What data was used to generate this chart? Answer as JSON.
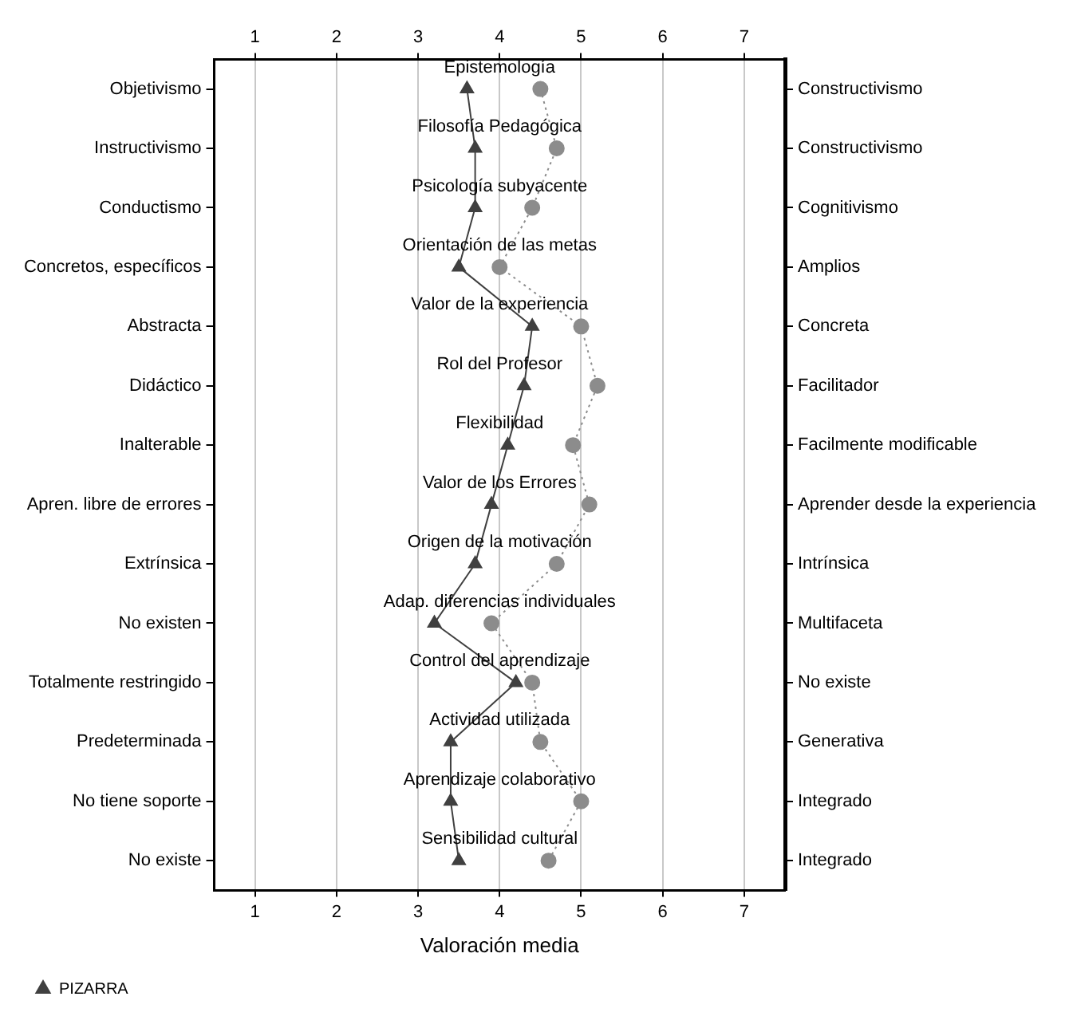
{
  "chart_data": {
    "type": "line",
    "orientation": "horizontal",
    "categories": [
      "Objetivismo",
      "Instructivismo",
      "Conductismo",
      "Concretos, específicos",
      "Abstracta",
      "Didáctico",
      "Inalterable",
      "Apren. libre de errores",
      "Extrínsica",
      "No existen",
      "Totalmente restringido",
      "Predeterminada",
      "No tiene soporte",
      "No existe"
    ],
    "y2_categories": [
      "Constructivismo",
      "Constructivismo",
      "Cognitivismo",
      "Amplios",
      "Concreta",
      "Facilitador",
      "Facilmente modificable",
      "Aprender desde la experiencia",
      "Intrínsica",
      "Multifaceta",
      "No existe",
      "Generativa",
      "Integrado",
      "Integrado"
    ],
    "series": [
      {
        "name": "PIZARRA",
        "color": "#404040",
        "marker": "triangle",
        "line_style": "solid",
        "values": [
          3.6,
          3.7,
          3.7,
          3.5,
          4.4,
          4.3,
          4.1,
          3.9,
          3.7,
          3.2,
          4.2,
          3.4,
          3.4,
          3.5
        ]
      },
      {
        "color": "#8c8c8c",
        "marker": "circle",
        "line_style": "dotted",
        "values": [
          4.5,
          4.7,
          4.4,
          4.0,
          5.0,
          5.2,
          4.9,
          5.1,
          4.7,
          3.9,
          4.4,
          4.5,
          5.0,
          4.6
        ]
      }
    ],
    "annotations": [
      "Epistemología",
      "Filosofía Pedagógica",
      "Psicología subyacente",
      "Orientación de las metas",
      "Valor de la experiencia",
      "Rol del Profesor",
      "Flexibilidad",
      "Valor de los Errores",
      "Origen de la motivación",
      "Adap. diferencias individuales",
      "Control del aprendizaje",
      "Actividad utilizada",
      "Aprendizaje colaborativo",
      "Sensibilidad cultural"
    ],
    "xlabel": "Valoración media",
    "xlim": [
      0.5,
      7.5
    ],
    "xticks": [
      1,
      2,
      3,
      4,
      5,
      6,
      7
    ],
    "x2lim": [
      0.5,
      7.5
    ],
    "x2ticks": [
      1,
      2,
      3,
      4,
      5,
      6,
      7
    ],
    "grid": "x",
    "legend": "bottom left"
  }
}
